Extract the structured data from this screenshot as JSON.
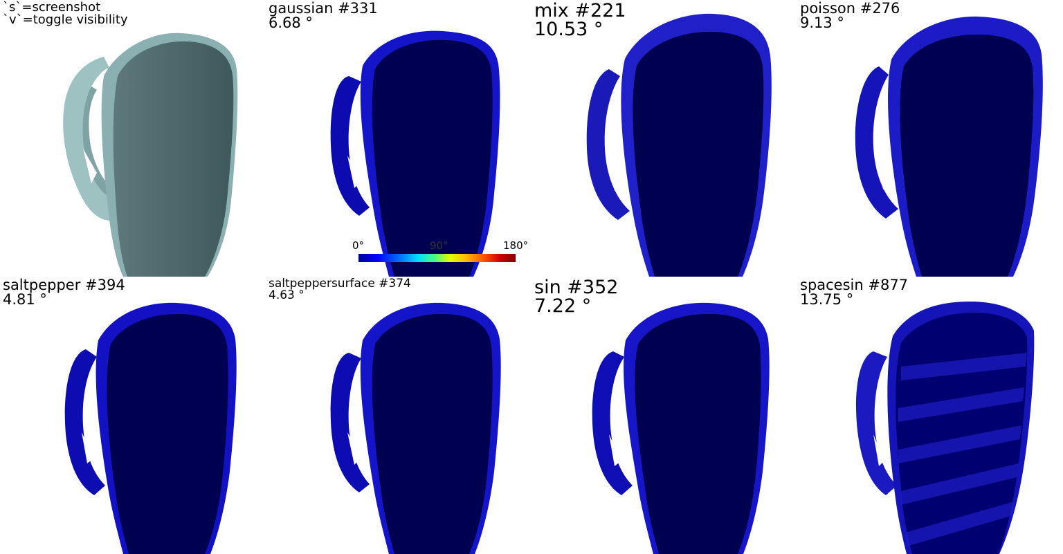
{
  "help_text": [
    "`s`=screenshot",
    "`v`=toggle visibility"
  ],
  "panels": [
    {
      "key": "original",
      "title": "",
      "value": ""
    },
    {
      "key": "gaussian",
      "title": "gaussian #331",
      "value": "6.68 °"
    },
    {
      "key": "mix",
      "title": "mix #221",
      "value": "10.53 °"
    },
    {
      "key": "poisson",
      "title": "poisson #276",
      "value": "9.13 °"
    },
    {
      "key": "saltpepper",
      "title": "saltpepper #394",
      "value": "4.81 °"
    },
    {
      "key": "saltpeppersurface",
      "title": "saltpeppersurface #374",
      "value": "4.63 °"
    },
    {
      "key": "sin",
      "title": "sin #352",
      "value": "7.22 °"
    },
    {
      "key": "spacesin",
      "title": "spacesin #877",
      "value": "13.75 °"
    }
  ],
  "colorbar": {
    "min_label": "0°",
    "mid_label": "90°",
    "max_label": "180°"
  },
  "colors": {
    "mesh_gray": "#4a6468",
    "mesh_light": "#9ec1c2",
    "mesh_blue": "#00004a",
    "mesh_edge": "#1010c0"
  }
}
